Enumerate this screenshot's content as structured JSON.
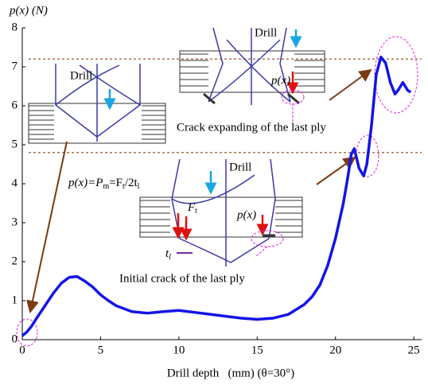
{
  "chart_data": {
    "type": "line",
    "ylabel": "p(x) (N)",
    "xlabel": "Drill depth   (mm) (θ=30°)",
    "x": [
      0,
      0.3,
      0.6,
      1,
      1.5,
      2,
      2.5,
      3,
      3.5,
      4,
      4.5,
      5,
      5.5,
      6,
      7,
      8,
      9,
      10,
      11,
      12,
      13,
      14,
      15,
      16,
      17,
      18,
      18.5,
      19,
      19.5,
      20,
      20.5,
      20.8,
      21,
      21.2,
      21.5,
      21.8,
      22,
      22.3,
      22.6,
      22.9,
      23.2,
      23.5,
      23.8,
      24,
      24.3,
      24.6,
      24.8
    ],
    "values": [
      0.1,
      0.2,
      0.35,
      0.6,
      0.9,
      1.2,
      1.45,
      1.6,
      1.62,
      1.5,
      1.35,
      1.15,
      1.0,
      0.87,
      0.72,
      0.68,
      0.72,
      0.75,
      0.7,
      0.65,
      0.6,
      0.55,
      0.52,
      0.55,
      0.65,
      0.9,
      1.1,
      1.4,
      1.9,
      2.6,
      3.5,
      4.2,
      4.75,
      4.9,
      4.4,
      4.2,
      4.5,
      5.5,
      6.8,
      7.25,
      7.1,
      6.6,
      6.3,
      6.4,
      6.6,
      6.4,
      6.35
    ],
    "color": "#1414e6",
    "xlim": [
      0,
      25.5
    ],
    "ylim": [
      0,
      8
    ],
    "xticks": [
      0,
      5,
      10,
      15,
      20,
      25
    ],
    "yticks": [
      0,
      1,
      2,
      3,
      4,
      5,
      6,
      7,
      8
    ],
    "reference_lines": [
      7.2,
      4.8
    ],
    "annotations": {
      "drill_1": "Drill",
      "drill_2": "Drill",
      "drill_3": "Drill",
      "crack_expanding": "Crack expanding of the last ply",
      "initial_crack": "Initial crack of the last ply",
      "formula": [
        "p(x)=P",
        "m",
        "=F",
        "t",
        "/2t",
        "l"
      ],
      "px_1": "p(x)",
      "px_2": "p(x)",
      "ft": [
        "F",
        "t"
      ],
      "tl": [
        "t",
        "l"
      ]
    }
  }
}
